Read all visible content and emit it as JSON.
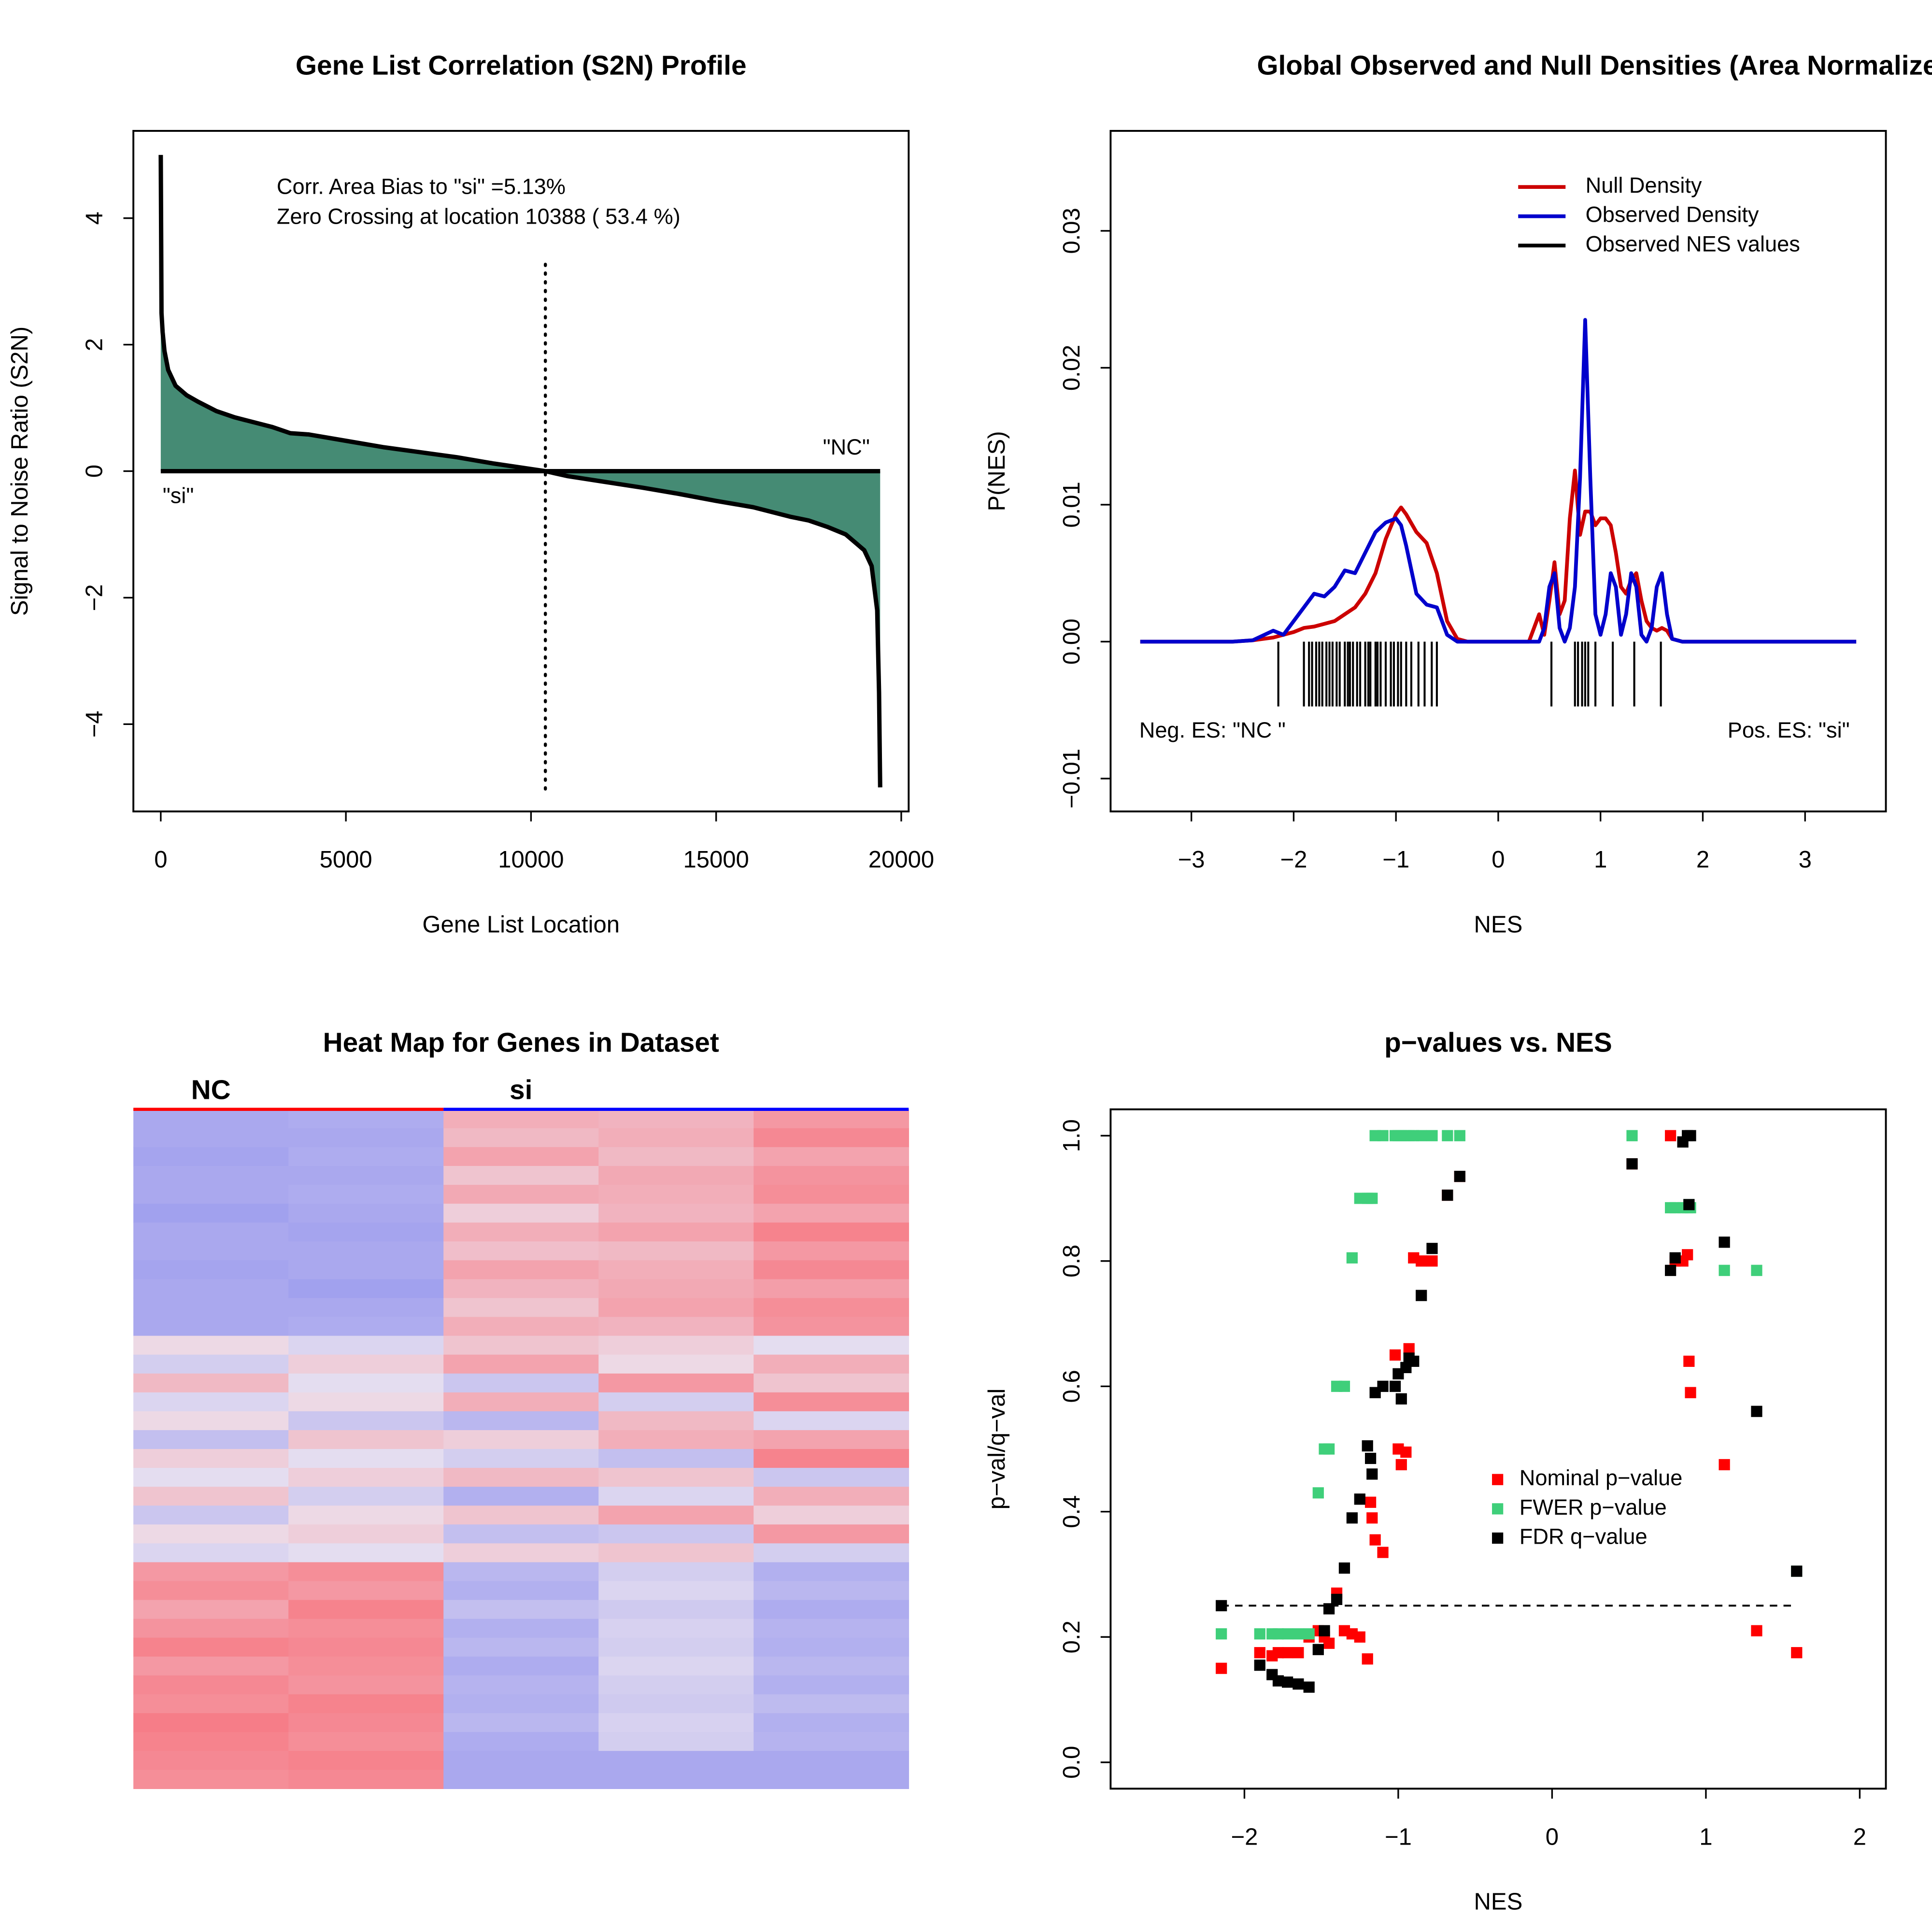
{
  "chart_data": [
    {
      "type": "area",
      "title": "Gene List Correlation (S2N) Profile",
      "xlabel": "Gene List Location",
      "ylabel": "Signal to Noise Ratio (S2N)",
      "x": [
        0,
        20,
        50,
        100,
        200,
        400,
        700,
        1000,
        1500,
        2000,
        3000,
        3500,
        4000,
        5000,
        6000,
        7000,
        8000,
        9000,
        10388,
        11000,
        12000,
        13000,
        14000,
        15000,
        16000,
        17000,
        17500,
        18000,
        18500,
        19000,
        19200,
        19350,
        19400,
        19420,
        19430
      ],
      "series": [
        {
          "color": "#458B74",
          "line_color": "#000000",
          "values": [
            5.0,
            2.5,
            2.2,
            1.9,
            1.6,
            1.35,
            1.2,
            1.1,
            0.95,
            0.85,
            0.7,
            0.6,
            0.58,
            0.48,
            0.38,
            0.3,
            0.22,
            0.12,
            0,
            -0.08,
            -0.17,
            -0.26,
            -0.36,
            -0.47,
            -0.57,
            -0.72,
            -0.78,
            -0.88,
            -1.0,
            -1.25,
            -1.5,
            -2.2,
            -3.5,
            -4.5,
            -5.0
          ]
        }
      ],
      "vline": 10388,
      "annotations": [
        "Corr. Area Bias to \"si\" =5.13%",
        "Zero Crossing at location  10388  ( 53.4  %)",
        "\"NC\"",
        "\"si\""
      ],
      "xlim": [
        -740,
        20200
      ],
      "ylim": [
        -5.38,
        5.38
      ],
      "xticks": [
        0,
        5000,
        10000,
        15000,
        20000
      ],
      "yticks": [
        {
          "value": -4,
          "label": "−4"
        },
        {
          "value": -2,
          "label": "−2"
        },
        0,
        2,
        4
      ]
    },
    {
      "type": "line",
      "title": "Global Observed and Null Densities (Area Normalized)",
      "xlabel": "NES",
      "ylabel": "P(NES)",
      "x": [
        -3.5,
        -2.6,
        -2.4,
        -2.2,
        -2.1,
        -2.0,
        -1.9,
        -1.8,
        -1.7,
        -1.6,
        -1.5,
        -1.4,
        -1.3,
        -1.2,
        -1.1,
        -1.0,
        -0.95,
        -0.9,
        -0.8,
        -0.7,
        -0.6,
        -0.5,
        -0.4,
        -0.3,
        0.3,
        0.4,
        0.45,
        0.5,
        0.55,
        0.6,
        0.65,
        0.7,
        0.75,
        0.8,
        0.85,
        0.9,
        0.95,
        1.0,
        1.05,
        1.1,
        1.15,
        1.2,
        1.25,
        1.3,
        1.35,
        1.4,
        1.45,
        1.5,
        1.55,
        1.6,
        1.65,
        1.7,
        1.8,
        2.0,
        3.5
      ],
      "series": [
        {
          "name": "Null Density",
          "color": "#cc0000",
          "values": [
            0,
            0,
            0.0001,
            0.0003,
            0.0005,
            0.0007,
            0.001,
            0.0011,
            0.0013,
            0.0015,
            0.002,
            0.0025,
            0.0035,
            0.005,
            0.0075,
            0.0093,
            0.0098,
            0.0093,
            0.008,
            0.0072,
            0.005,
            0.0015,
            0.0002,
            0,
            0,
            0.002,
            0.0005,
            0.003,
            0.0058,
            0.002,
            0.003,
            0.009,
            0.0125,
            0.0078,
            0.0095,
            0.0095,
            0.0085,
            0.009,
            0.009,
            0.0085,
            0.0065,
            0.004,
            0.0035,
            0.0045,
            0.005,
            0.003,
            0.0015,
            0.001,
            0.0008,
            0.001,
            0.0008,
            0.0002,
            0,
            0,
            0
          ]
        },
        {
          "name": "Observed Density",
          "color": "#0000cc",
          "values": [
            0,
            0,
            0.0001,
            0.0008,
            0.0005,
            0.0015,
            0.0025,
            0.0035,
            0.0033,
            0.004,
            0.0052,
            0.005,
            0.0065,
            0.008,
            0.0087,
            0.009,
            0.0085,
            0.007,
            0.0035,
            0.0027,
            0.0025,
            0.0005,
            0,
            0,
            0,
            0,
            0.001,
            0.004,
            0.005,
            0.001,
            0,
            0.001,
            0.004,
            0.012,
            0.0235,
            0.012,
            0.002,
            0.0005,
            0.002,
            0.005,
            0.004,
            0.0005,
            0.002,
            0.005,
            0.004,
            0.0005,
            0,
            0.001,
            0.004,
            0.005,
            0.002,
            0.0002,
            0,
            0,
            0
          ]
        }
      ],
      "rug": {
        "name": "Observed NES values",
        "color": "#000000",
        "values": [
          -2.15,
          -1.9,
          -1.85,
          -1.82,
          -1.78,
          -1.75,
          -1.72,
          -1.68,
          -1.65,
          -1.62,
          -1.58,
          -1.55,
          -1.5,
          -1.47,
          -1.45,
          -1.42,
          -1.38,
          -1.35,
          -1.3,
          -1.27,
          -1.25,
          -1.2,
          -1.18,
          -1.15,
          -1.1,
          -1.05,
          -1.02,
          -0.98,
          -0.95,
          -0.9,
          -0.85,
          -0.78,
          -0.72,
          -0.65,
          -0.6,
          0.52,
          0.75,
          0.78,
          0.82,
          0.85,
          0.88,
          0.95,
          1.12,
          1.33,
          1.59
        ]
      },
      "annotations": [
        "Neg. ES: \"NC \"",
        "Pos. ES: \"si\""
      ],
      "xlim": [
        -3.79,
        3.79
      ],
      "ylim": [
        -0.0124,
        0.0373
      ],
      "xticks": [
        {
          "value": -3,
          "label": "−3"
        },
        {
          "value": -2,
          "label": "−2"
        },
        {
          "value": -1,
          "label": "−1"
        },
        0,
        1,
        2,
        3
      ],
      "yticks": [
        {
          "value": -0.01,
          "label": "−0.01"
        },
        {
          "value": 0,
          "label": "0.00"
        },
        0.01,
        0.02,
        0.03
      ]
    },
    {
      "type": "heatmap",
      "title": "Heat Map for Genes in Dataset",
      "groups": [
        {
          "name": "NC",
          "color": "#ff0000",
          "span": 2
        },
        {
          "name": "si",
          "color": "#0000ff",
          "span": 3
        }
      ],
      "rows": [
        [
          -0.8,
          -0.75,
          0.5,
          0.45,
          0.7
        ],
        [
          -0.8,
          -0.8,
          0.4,
          0.5,
          0.85
        ],
        [
          -0.85,
          -0.75,
          0.6,
          0.4,
          0.6
        ],
        [
          -0.8,
          -0.8,
          0.3,
          0.55,
          0.75
        ],
        [
          -0.8,
          -0.75,
          0.55,
          0.5,
          0.8
        ],
        [
          -0.9,
          -0.8,
          0.2,
          0.45,
          0.6
        ],
        [
          -0.8,
          -0.85,
          0.5,
          0.6,
          0.9
        ],
        [
          -0.8,
          -0.8,
          0.35,
          0.4,
          0.7
        ],
        [
          -0.85,
          -0.8,
          0.6,
          0.5,
          0.85
        ],
        [
          -0.8,
          -0.9,
          0.45,
          0.55,
          0.65
        ],
        [
          -0.8,
          -0.8,
          0.3,
          0.6,
          0.8
        ],
        [
          -0.8,
          -0.75,
          0.5,
          0.45,
          0.75
        ],
        [
          0.1,
          -0.2,
          0.3,
          0.2,
          -0.1
        ],
        [
          -0.3,
          0.2,
          0.6,
          0.1,
          0.5
        ],
        [
          0.4,
          -0.1,
          -0.4,
          0.7,
          0.3
        ],
        [
          -0.2,
          0.1,
          0.5,
          -0.3,
          0.8
        ],
        [
          0.1,
          -0.4,
          -0.6,
          0.4,
          -0.2
        ],
        [
          -0.5,
          0.3,
          0.2,
          0.5,
          0.6
        ],
        [
          0.2,
          -0.1,
          -0.3,
          -0.5,
          0.9
        ],
        [
          -0.1,
          0.2,
          0.4,
          0.3,
          -0.4
        ],
        [
          0.3,
          -0.3,
          -0.7,
          -0.2,
          0.5
        ],
        [
          -0.4,
          0.1,
          0.3,
          0.6,
          0.2
        ],
        [
          0.1,
          0.2,
          -0.5,
          -0.4,
          0.7
        ],
        [
          -0.2,
          -0.1,
          0.2,
          0.3,
          -0.3
        ],
        [
          0.7,
          0.8,
          -0.6,
          -0.3,
          -0.7
        ],
        [
          0.8,
          0.7,
          -0.7,
          -0.2,
          -0.6
        ],
        [
          0.6,
          0.9,
          -0.5,
          -0.35,
          -0.75
        ],
        [
          0.75,
          0.8,
          -0.7,
          -0.25,
          -0.65
        ],
        [
          0.9,
          0.85,
          -0.6,
          -0.3,
          -0.7
        ],
        [
          0.7,
          0.8,
          -0.75,
          -0.2,
          -0.6
        ],
        [
          0.85,
          0.75,
          -0.65,
          -0.3,
          -0.7
        ],
        [
          0.8,
          0.9,
          -0.7,
          -0.35,
          -0.55
        ],
        [
          0.95,
          0.85,
          -0.6,
          -0.25,
          -0.7
        ],
        [
          0.9,
          0.8,
          -0.75,
          -0.3,
          -0.65
        ],
        [
          0.85,
          0.9,
          -0.8,
          -0.8,
          -0.8
        ],
        [
          0.8,
          0.85,
          -0.8,
          -0.8,
          -0.8
        ]
      ]
    },
    {
      "type": "scatter",
      "title": "p−values vs. NES",
      "xlabel": "NES",
      "ylabel": "p−val/q−val",
      "x": [
        -2.15,
        -1.9,
        -1.82,
        -1.78,
        -1.72,
        -1.65,
        -1.58,
        -1.52,
        -1.48,
        -1.45,
        -1.4,
        -1.35,
        -1.3,
        -1.25,
        -1.2,
        -1.18,
        -1.17,
        -1.15,
        -1.1,
        -1.02,
        -1.0,
        -0.98,
        -0.95,
        -0.93,
        -0.9,
        -0.85,
        -0.78,
        -0.68,
        -0.6,
        0.52,
        0.77,
        0.8,
        0.85,
        0.88,
        0.89,
        0.9,
        1.12,
        1.33,
        1.59
      ],
      "series": [
        {
          "name": "Nominal p−value",
          "color": "#ff0000",
          "values": [
            0.15,
            0.175,
            0.17,
            0.175,
            0.175,
            0.175,
            0.2,
            0.21,
            0.2,
            0.19,
            0.27,
            0.21,
            0.205,
            0.2,
            0.165,
            0.415,
            0.39,
            0.355,
            0.335,
            0.65,
            0.5,
            0.475,
            0.495,
            0.66,
            0.805,
            0.8,
            0.8,
            0.905,
            0.935,
            0.955,
            1.0,
            0.8,
            0.8,
            0.81,
            0.64,
            0.59,
            0.475,
            0.21,
            0.175
          ]
        },
        {
          "name": "FWER p−value",
          "color": "#3fcf7a",
          "values": [
            0.205,
            0.205,
            0.205,
            0.205,
            0.205,
            0.205,
            0.205,
            0.43,
            0.5,
            0.5,
            0.6,
            0.6,
            0.805,
            0.9,
            0.9,
            0.9,
            0.9,
            1.0,
            1.0,
            1.0,
            1.0,
            1.0,
            1.0,
            1.0,
            1.0,
            1.0,
            1.0,
            1.0,
            1.0,
            1.0,
            0.885,
            0.885,
            0.885,
            0.885,
            0.89,
            0.885,
            0.785,
            0.785,
            0.305
          ]
        },
        {
          "name": "FDR q−value",
          "color": "#000000",
          "values": [
            0.25,
            0.155,
            0.14,
            0.13,
            0.128,
            0.125,
            0.12,
            0.18,
            0.21,
            0.245,
            0.26,
            0.31,
            0.39,
            0.42,
            0.505,
            0.485,
            0.46,
            0.59,
            0.6,
            0.6,
            0.62,
            0.58,
            0.63,
            0.645,
            0.64,
            0.745,
            0.82,
            0.905,
            0.935,
            0.955,
            0.785,
            0.805,
            0.99,
            1.0,
            0.89,
            1.0,
            0.83,
            0.56,
            0.305
          ]
        }
      ],
      "hline": 0.25,
      "xlim": [
        -2.87,
        2.17
      ],
      "ylim": [
        -0.042,
        1.042
      ],
      "xticks": [
        {
          "value": -2,
          "label": "−2"
        },
        {
          "value": -1,
          "label": "−1"
        },
        0,
        1,
        2
      ],
      "yticks": [
        {
          "value": 0,
          "label": "0.0"
        },
        0.2,
        0.4,
        0.6,
        0.8,
        {
          "value": 1,
          "label": "1.0"
        }
      ]
    }
  ]
}
